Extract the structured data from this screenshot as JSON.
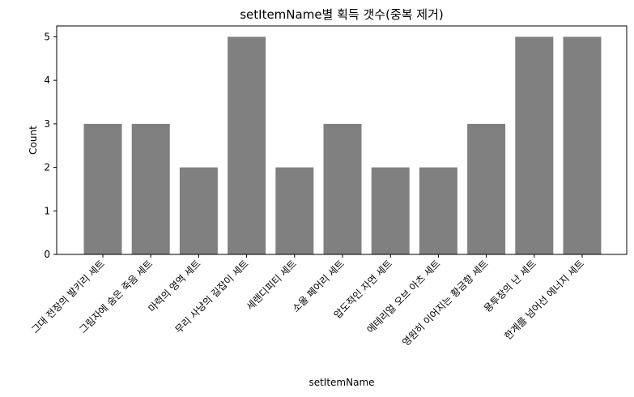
{
  "chart_data": {
    "type": "bar",
    "title": "setItemName별 획득 갯수(중복 제거)",
    "xlabel": "setItemName",
    "ylabel": "Count",
    "ylim": [
      0,
      5.25
    ],
    "yticks": [
      0,
      1,
      2,
      3,
      4,
      5
    ],
    "categories": [
      "그대 전장의 발키리 세트",
      "그림자에 숨은 죽음 세트",
      "마력의 영역 세트",
      "무리 사냥의 길잡이 세트",
      "세렌디피티 세트",
      "소울 페어리 세트",
      "압도적인 자연 세트",
      "에테리얼 오브 아츠 세트",
      "영원히 이어지는 황금향 세트",
      "용투장의 난 세트",
      "한계를 넘어선 에너지 세트"
    ],
    "values": [
      3,
      3,
      2,
      5,
      2,
      3,
      2,
      2,
      3,
      5,
      5
    ],
    "bar_color": "#808080",
    "grid": false,
    "legend": "none"
  }
}
